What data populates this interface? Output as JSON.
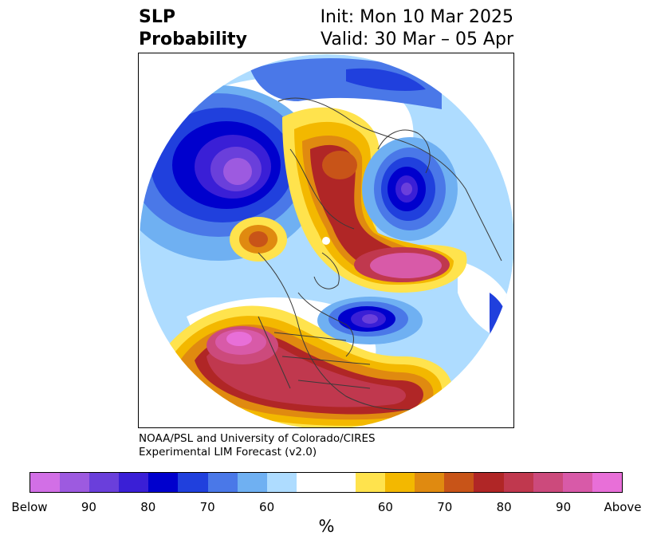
{
  "title": {
    "left_line1": "SLP",
    "left_line2": "Probability",
    "right_line1": "Init: Mon 10 Mar 2025",
    "right_line2": "Valid: 30 Mar – 05 Apr"
  },
  "credit": {
    "line1": "NOAA/PSL and University of Colorado/CIRES",
    "line2": "Experimental LIM Forecast (v2.0)"
  },
  "colorbar": {
    "unit": "%",
    "segments": [
      {
        "color": "#d26fe6"
      },
      {
        "color": "#9d5ae0"
      },
      {
        "color": "#6a3fdb"
      },
      {
        "color": "#3a1fd6"
      },
      {
        "color": "#0000cd"
      },
      {
        "color": "#2040dd"
      },
      {
        "color": "#4a78e8"
      },
      {
        "color": "#6fb0f2"
      },
      {
        "color": "#aedcff"
      },
      {
        "color": "#ffffff",
        "wide": true
      },
      {
        "color": "#ffe34d"
      },
      {
        "color": "#f3b800"
      },
      {
        "color": "#e08a10"
      },
      {
        "color": "#c85418"
      },
      {
        "color": "#b02626"
      },
      {
        "color": "#c0384e"
      },
      {
        "color": "#cc4a7c"
      },
      {
        "color": "#d85aa8"
      },
      {
        "color": "#e86fd8"
      }
    ],
    "tick_labels": [
      "Below",
      "90",
      "80",
      "70",
      "60",
      "60",
      "70",
      "80",
      "90",
      "Above"
    ]
  },
  "map": {
    "projection": "north-polar-stereographic",
    "variable": "sea level pressure tercile probability",
    "features": [
      "below-normal-low-north-pacific",
      "below-normal-low-scandinavia",
      "below-normal-low-labrador-sea",
      "above-normal-high-arctic-russia",
      "above-normal-high-central-north-america",
      "above-normal-high-western-atlantic"
    ]
  }
}
